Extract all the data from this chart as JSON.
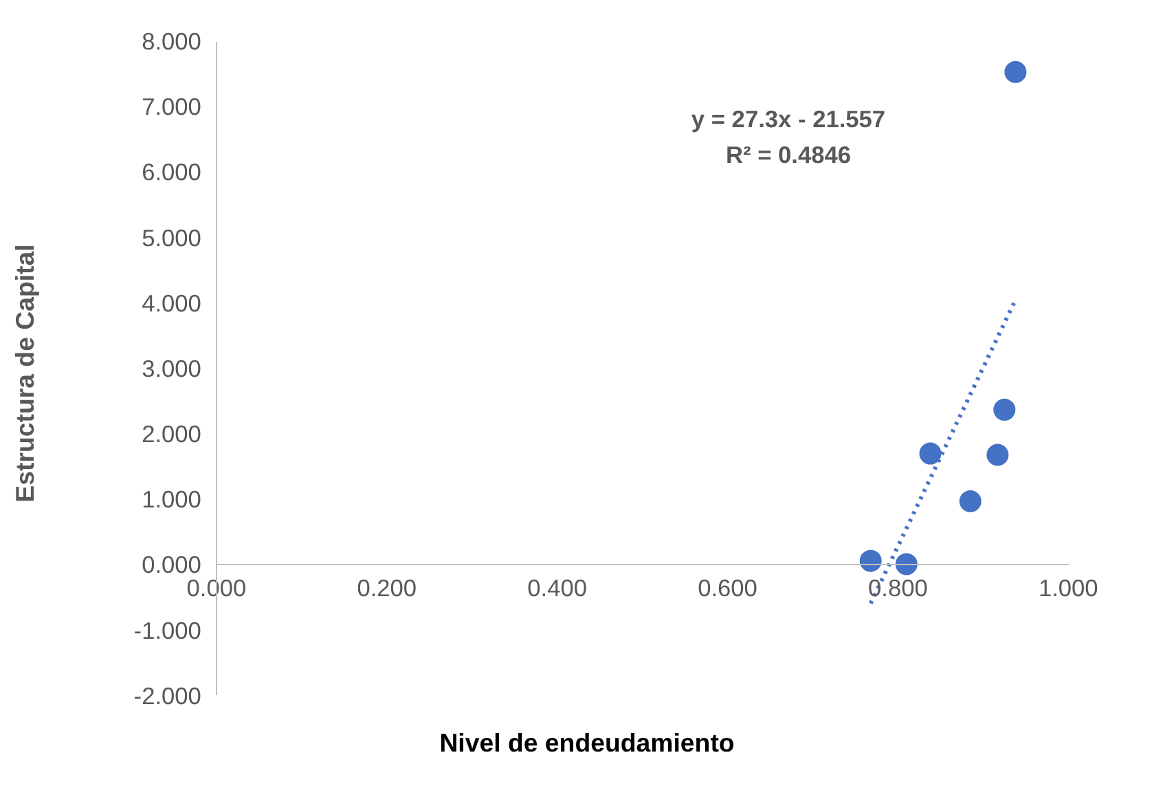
{
  "chart_data": {
    "type": "scatter",
    "xlabel": "Nivel de endeudamiento",
    "ylabel": "Estructura de Capital",
    "annotations": [
      "y = 27.3x - 21.557\nR² = 0.4846"
    ],
    "series": [
      {
        "type": "scatter",
        "color": "#4472c4",
        "x": [
          0.768,
          0.81,
          0.838,
          0.885,
          0.917,
          0.925,
          0.938
        ],
        "values": [
          0.06,
          0.01,
          1.7,
          0.97,
          1.68,
          2.37,
          7.53
        ],
        "marker": "circle"
      },
      {
        "type": "line",
        "color": "#4472c4",
        "x": [
          0.768,
          0.938
        ],
        "values": [
          -0.59,
          4.05
        ],
        "line_style": "dotted",
        "marker": "none"
      }
    ],
    "xlim": [
      0,
      1
    ],
    "ylim": [
      -2,
      8
    ],
    "xticks": [
      {
        "value": 0,
        "label": "0.000"
      },
      {
        "value": 0.2,
        "label": "0.200"
      },
      {
        "value": 0.4,
        "label": "0.400"
      },
      {
        "value": 0.6,
        "label": "0.600"
      },
      {
        "value": 0.8,
        "label": "0.800"
      },
      {
        "value": 1,
        "label": "1.000"
      }
    ],
    "yticks": [
      {
        "value": -2,
        "label": "-2.000"
      },
      {
        "value": -1,
        "label": "-1.000"
      },
      {
        "value": 0,
        "label": "0.000"
      },
      {
        "value": 1,
        "label": "1.000"
      },
      {
        "value": 2,
        "label": "2.000"
      },
      {
        "value": 3,
        "label": "3.000"
      },
      {
        "value": 4,
        "label": "4.000"
      },
      {
        "value": 5,
        "label": "5.000"
      },
      {
        "value": 6,
        "label": "6.000"
      },
      {
        "value": 7,
        "label": "7.000"
      },
      {
        "value": 8,
        "label": "8.000"
      }
    ],
    "grid": false
  }
}
